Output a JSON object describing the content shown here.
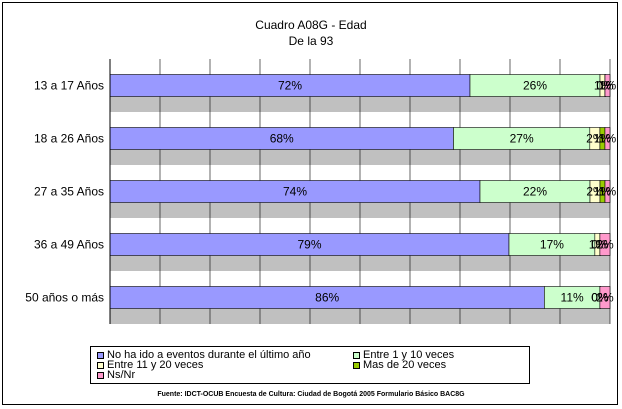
{
  "chart_data": {
    "type": "bar",
    "orientation": "horizontal",
    "stacked": "percent",
    "title": "Cuadro A08G - Edad",
    "subtitle": "De la 93",
    "categories": [
      "13 a 17 Años",
      "18 a 26 Años",
      "27 a 35 Años",
      "36 a 49 Años",
      "50 años o más"
    ],
    "series": [
      {
        "name": "No ha ido a eventos durante el último año",
        "color": "#9999ff",
        "values": [
          72,
          68,
          74,
          79,
          86
        ],
        "labels": [
          "72%",
          "68%",
          "74%",
          "79%",
          "86%"
        ]
      },
      {
        "name": "Entre 1 y  10 veces",
        "color": "#ccffcc",
        "values": [
          26,
          27,
          22,
          17,
          11
        ],
        "labels": [
          "26%",
          "27%",
          "22%",
          "17%",
          "11%"
        ]
      },
      {
        "name": "Entre 11 y 20 veces",
        "color": "#ffffcc",
        "values": [
          1,
          2,
          2,
          1,
          0
        ],
        "labels": [
          "1%",
          "2%",
          "2%",
          "1%",
          "0%"
        ]
      },
      {
        "name": "Mas de 20 veces",
        "color": "#99cc00",
        "values": [
          0,
          1,
          1,
          0,
          0
        ],
        "labels": [
          "0%",
          "1%",
          "1%",
          "0%",
          "0%"
        ]
      },
      {
        "name": "Ns/Nr",
        "color": "#ff99cc",
        "values": [
          1,
          1,
          1,
          2,
          2
        ],
        "labels": [
          "1%",
          "1%",
          "1%",
          "2%",
          "2%"
        ]
      }
    ],
    "xlim": [
      0,
      100
    ],
    "grid": true,
    "legend_position": "bottom"
  },
  "source": "Fuente: IDCT-OCUB Encuesta de Cultura: Ciudad de Bogotá 2005 Formulario Básico BAC8G"
}
